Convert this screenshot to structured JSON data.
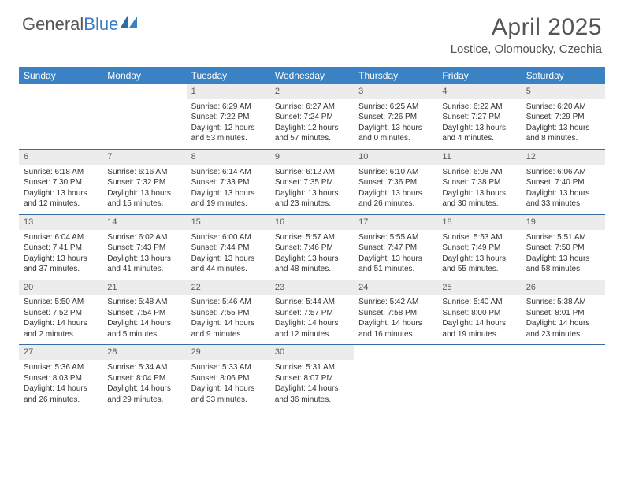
{
  "logo": {
    "part1": "General",
    "part2": "Blue"
  },
  "title": "April 2025",
  "location": "Lostice, Olomoucky, Czechia",
  "colors": {
    "header_bg": "#3b82c4",
    "header_text": "#ffffff",
    "daynum_bg": "#ececec",
    "week_border": "#3b6ea0",
    "text": "#333333",
    "title_text": "#555555"
  },
  "day_names": [
    "Sunday",
    "Monday",
    "Tuesday",
    "Wednesday",
    "Thursday",
    "Friday",
    "Saturday"
  ],
  "weeks": [
    [
      {
        "day": "",
        "sunrise": "",
        "sunset": "",
        "daylight": ""
      },
      {
        "day": "",
        "sunrise": "",
        "sunset": "",
        "daylight": ""
      },
      {
        "day": "1",
        "sunrise": "Sunrise: 6:29 AM",
        "sunset": "Sunset: 7:22 PM",
        "daylight": "Daylight: 12 hours and 53 minutes."
      },
      {
        "day": "2",
        "sunrise": "Sunrise: 6:27 AM",
        "sunset": "Sunset: 7:24 PM",
        "daylight": "Daylight: 12 hours and 57 minutes."
      },
      {
        "day": "3",
        "sunrise": "Sunrise: 6:25 AM",
        "sunset": "Sunset: 7:26 PM",
        "daylight": "Daylight: 13 hours and 0 minutes."
      },
      {
        "day": "4",
        "sunrise": "Sunrise: 6:22 AM",
        "sunset": "Sunset: 7:27 PM",
        "daylight": "Daylight: 13 hours and 4 minutes."
      },
      {
        "day": "5",
        "sunrise": "Sunrise: 6:20 AM",
        "sunset": "Sunset: 7:29 PM",
        "daylight": "Daylight: 13 hours and 8 minutes."
      }
    ],
    [
      {
        "day": "6",
        "sunrise": "Sunrise: 6:18 AM",
        "sunset": "Sunset: 7:30 PM",
        "daylight": "Daylight: 13 hours and 12 minutes."
      },
      {
        "day": "7",
        "sunrise": "Sunrise: 6:16 AM",
        "sunset": "Sunset: 7:32 PM",
        "daylight": "Daylight: 13 hours and 15 minutes."
      },
      {
        "day": "8",
        "sunrise": "Sunrise: 6:14 AM",
        "sunset": "Sunset: 7:33 PM",
        "daylight": "Daylight: 13 hours and 19 minutes."
      },
      {
        "day": "9",
        "sunrise": "Sunrise: 6:12 AM",
        "sunset": "Sunset: 7:35 PM",
        "daylight": "Daylight: 13 hours and 23 minutes."
      },
      {
        "day": "10",
        "sunrise": "Sunrise: 6:10 AM",
        "sunset": "Sunset: 7:36 PM",
        "daylight": "Daylight: 13 hours and 26 minutes."
      },
      {
        "day": "11",
        "sunrise": "Sunrise: 6:08 AM",
        "sunset": "Sunset: 7:38 PM",
        "daylight": "Daylight: 13 hours and 30 minutes."
      },
      {
        "day": "12",
        "sunrise": "Sunrise: 6:06 AM",
        "sunset": "Sunset: 7:40 PM",
        "daylight": "Daylight: 13 hours and 33 minutes."
      }
    ],
    [
      {
        "day": "13",
        "sunrise": "Sunrise: 6:04 AM",
        "sunset": "Sunset: 7:41 PM",
        "daylight": "Daylight: 13 hours and 37 minutes."
      },
      {
        "day": "14",
        "sunrise": "Sunrise: 6:02 AM",
        "sunset": "Sunset: 7:43 PM",
        "daylight": "Daylight: 13 hours and 41 minutes."
      },
      {
        "day": "15",
        "sunrise": "Sunrise: 6:00 AM",
        "sunset": "Sunset: 7:44 PM",
        "daylight": "Daylight: 13 hours and 44 minutes."
      },
      {
        "day": "16",
        "sunrise": "Sunrise: 5:57 AM",
        "sunset": "Sunset: 7:46 PM",
        "daylight": "Daylight: 13 hours and 48 minutes."
      },
      {
        "day": "17",
        "sunrise": "Sunrise: 5:55 AM",
        "sunset": "Sunset: 7:47 PM",
        "daylight": "Daylight: 13 hours and 51 minutes."
      },
      {
        "day": "18",
        "sunrise": "Sunrise: 5:53 AM",
        "sunset": "Sunset: 7:49 PM",
        "daylight": "Daylight: 13 hours and 55 minutes."
      },
      {
        "day": "19",
        "sunrise": "Sunrise: 5:51 AM",
        "sunset": "Sunset: 7:50 PM",
        "daylight": "Daylight: 13 hours and 58 minutes."
      }
    ],
    [
      {
        "day": "20",
        "sunrise": "Sunrise: 5:50 AM",
        "sunset": "Sunset: 7:52 PM",
        "daylight": "Daylight: 14 hours and 2 minutes."
      },
      {
        "day": "21",
        "sunrise": "Sunrise: 5:48 AM",
        "sunset": "Sunset: 7:54 PM",
        "daylight": "Daylight: 14 hours and 5 minutes."
      },
      {
        "day": "22",
        "sunrise": "Sunrise: 5:46 AM",
        "sunset": "Sunset: 7:55 PM",
        "daylight": "Daylight: 14 hours and 9 minutes."
      },
      {
        "day": "23",
        "sunrise": "Sunrise: 5:44 AM",
        "sunset": "Sunset: 7:57 PM",
        "daylight": "Daylight: 14 hours and 12 minutes."
      },
      {
        "day": "24",
        "sunrise": "Sunrise: 5:42 AM",
        "sunset": "Sunset: 7:58 PM",
        "daylight": "Daylight: 14 hours and 16 minutes."
      },
      {
        "day": "25",
        "sunrise": "Sunrise: 5:40 AM",
        "sunset": "Sunset: 8:00 PM",
        "daylight": "Daylight: 14 hours and 19 minutes."
      },
      {
        "day": "26",
        "sunrise": "Sunrise: 5:38 AM",
        "sunset": "Sunset: 8:01 PM",
        "daylight": "Daylight: 14 hours and 23 minutes."
      }
    ],
    [
      {
        "day": "27",
        "sunrise": "Sunrise: 5:36 AM",
        "sunset": "Sunset: 8:03 PM",
        "daylight": "Daylight: 14 hours and 26 minutes."
      },
      {
        "day": "28",
        "sunrise": "Sunrise: 5:34 AM",
        "sunset": "Sunset: 8:04 PM",
        "daylight": "Daylight: 14 hours and 29 minutes."
      },
      {
        "day": "29",
        "sunrise": "Sunrise: 5:33 AM",
        "sunset": "Sunset: 8:06 PM",
        "daylight": "Daylight: 14 hours and 33 minutes."
      },
      {
        "day": "30",
        "sunrise": "Sunrise: 5:31 AM",
        "sunset": "Sunset: 8:07 PM",
        "daylight": "Daylight: 14 hours and 36 minutes."
      },
      {
        "day": "",
        "sunrise": "",
        "sunset": "",
        "daylight": ""
      },
      {
        "day": "",
        "sunrise": "",
        "sunset": "",
        "daylight": ""
      },
      {
        "day": "",
        "sunrise": "",
        "sunset": "",
        "daylight": ""
      }
    ]
  ]
}
